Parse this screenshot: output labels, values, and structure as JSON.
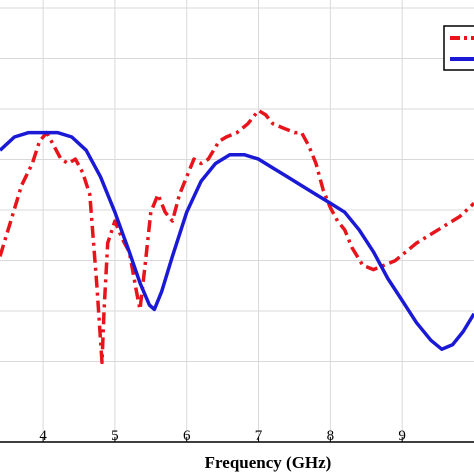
{
  "chart_data": {
    "type": "line",
    "title": "",
    "xlabel": "Frequency (GHz)",
    "ylabel": "",
    "xlim": [
      3.4,
      10.0
    ],
    "x_ticks": [
      4,
      5,
      6,
      7,
      8,
      9
    ],
    "y_gridlines": 8,
    "grid": true,
    "legend": {
      "position": "top-right",
      "entries": 2
    },
    "series": [
      {
        "style": "dash-dot",
        "color": "#e8141b",
        "points": [
          [
            3.4,
            0.42
          ],
          [
            3.55,
            0.5
          ],
          [
            3.7,
            0.58
          ],
          [
            3.85,
            0.63
          ],
          [
            3.95,
            0.68
          ],
          [
            4.05,
            0.7
          ],
          [
            4.15,
            0.67
          ],
          [
            4.25,
            0.64
          ],
          [
            4.35,
            0.63
          ],
          [
            4.45,
            0.64
          ],
          [
            4.55,
            0.61
          ],
          [
            4.65,
            0.56
          ],
          [
            4.75,
            0.35
          ],
          [
            4.82,
            0.18
          ],
          [
            4.85,
            0.3
          ],
          [
            4.9,
            0.45
          ],
          [
            5.0,
            0.5
          ],
          [
            5.1,
            0.46
          ],
          [
            5.2,
            0.43
          ],
          [
            5.3,
            0.34
          ],
          [
            5.35,
            0.3
          ],
          [
            5.42,
            0.4
          ],
          [
            5.5,
            0.52
          ],
          [
            5.6,
            0.56
          ],
          [
            5.7,
            0.52
          ],
          [
            5.8,
            0.5
          ],
          [
            5.9,
            0.56
          ],
          [
            6.0,
            0.6
          ],
          [
            6.1,
            0.64
          ],
          [
            6.2,
            0.63
          ],
          [
            6.3,
            0.64
          ],
          [
            6.45,
            0.68
          ],
          [
            6.55,
            0.69
          ],
          [
            6.7,
            0.7
          ],
          [
            6.85,
            0.72
          ],
          [
            7.0,
            0.75
          ],
          [
            7.1,
            0.74
          ],
          [
            7.2,
            0.72
          ],
          [
            7.35,
            0.71
          ],
          [
            7.5,
            0.7
          ],
          [
            7.6,
            0.7
          ],
          [
            7.7,
            0.67
          ],
          [
            7.8,
            0.63
          ],
          [
            7.9,
            0.57
          ],
          [
            8.0,
            0.53
          ],
          [
            8.1,
            0.5
          ],
          [
            8.2,
            0.48
          ],
          [
            8.3,
            0.44
          ],
          [
            8.45,
            0.4
          ],
          [
            8.6,
            0.39
          ],
          [
            8.75,
            0.4
          ],
          [
            8.9,
            0.41
          ],
          [
            9.05,
            0.43
          ],
          [
            9.2,
            0.45
          ],
          [
            9.4,
            0.47
          ],
          [
            9.6,
            0.49
          ],
          [
            9.8,
            0.51
          ],
          [
            10.0,
            0.54
          ]
        ]
      },
      {
        "style": "solid",
        "color": "#1a1ad6",
        "points": [
          [
            3.4,
            0.66
          ],
          [
            3.6,
            0.69
          ],
          [
            3.8,
            0.7
          ],
          [
            4.0,
            0.7
          ],
          [
            4.2,
            0.7
          ],
          [
            4.4,
            0.69
          ],
          [
            4.6,
            0.66
          ],
          [
            4.8,
            0.6
          ],
          [
            5.0,
            0.52
          ],
          [
            5.2,
            0.43
          ],
          [
            5.35,
            0.36
          ],
          [
            5.48,
            0.31
          ],
          [
            5.55,
            0.3
          ],
          [
            5.65,
            0.34
          ],
          [
            5.8,
            0.42
          ],
          [
            6.0,
            0.52
          ],
          [
            6.2,
            0.59
          ],
          [
            6.4,
            0.63
          ],
          [
            6.6,
            0.65
          ],
          [
            6.8,
            0.65
          ],
          [
            7.0,
            0.64
          ],
          [
            7.2,
            0.62
          ],
          [
            7.4,
            0.6
          ],
          [
            7.6,
            0.58
          ],
          [
            7.8,
            0.56
          ],
          [
            8.0,
            0.54
          ],
          [
            8.2,
            0.52
          ],
          [
            8.4,
            0.48
          ],
          [
            8.6,
            0.43
          ],
          [
            8.8,
            0.37
          ],
          [
            9.0,
            0.32
          ],
          [
            9.2,
            0.27
          ],
          [
            9.4,
            0.23
          ],
          [
            9.55,
            0.21
          ],
          [
            9.7,
            0.22
          ],
          [
            9.85,
            0.25
          ],
          [
            10.0,
            0.29
          ]
        ]
      }
    ]
  }
}
